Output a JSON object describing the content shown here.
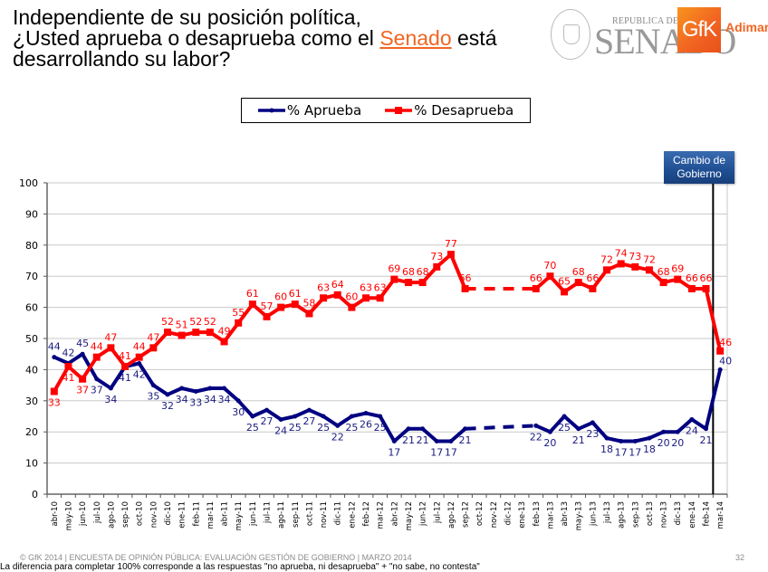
{
  "header": {
    "title_line1": "Independiente de su posición política,",
    "title_line2_pre": "¿Usted aprueba o desaprueba como el ",
    "title_highlight": "Senado",
    "title_line2_post": " está",
    "title_line3": "desarrollando su labor?",
    "highlight_color": "#f26522"
  },
  "logos": {
    "senado_small": "REPUBLICA DE CHILE",
    "senado_big": "SENADO",
    "gfk": "GfK",
    "adimark": "Adimark"
  },
  "annotation": {
    "line1": "Cambio de",
    "line2": "Gobierno",
    "at_category": "feb-14"
  },
  "footer": {
    "copyright": "© GfK 2014 | ENCUESTA DE OPINIÓN PÚBLICA: EVALUACIÓN GESTIÓN DE GOBIERNO | MARZO 2014",
    "note": "La diferencia para completar 100% corresponde a las respuestas \"no aprueba, ni desaprueba\" + \"no sabe, no contesta\"",
    "page": "32"
  },
  "chart_data": {
    "type": "line",
    "title": "¿Usted aprueba o desaprueba como el Senado está desarrollando su labor?",
    "xlabel": "",
    "ylabel": "",
    "ylim": [
      0,
      100
    ],
    "yticks": [
      0,
      10,
      20,
      30,
      40,
      50,
      60,
      70,
      80,
      90,
      100
    ],
    "grid": true,
    "legend_position": "top-center",
    "categories": [
      "abr-10",
      "may-10",
      "jun-10",
      "jul-10",
      "ago-10",
      "sep-10",
      "oct-10",
      "nov-10",
      "dic-10",
      "ene-11",
      "feb-11",
      "mar-11",
      "abr-11",
      "may-11",
      "jun-11",
      "jul-11",
      "ago-11",
      "sep-11",
      "oct-11",
      "nov-11",
      "dic-11",
      "ene-12",
      "feb-12",
      "mar-12",
      "abr-12",
      "may-12",
      "jun-12",
      "jul-12",
      "ago-12",
      "sep-12",
      "oct-12",
      "nov-12",
      "dic-12",
      "ene-13",
      "feb-13",
      "mar-13",
      "abr-13",
      "may-13",
      "jun-13",
      "jul-13",
      "ago-13",
      "sep-13",
      "oct-13",
      "nov-13",
      "dic-13",
      "ene-14",
      "feb-14",
      "mar-14"
    ],
    "series": [
      {
        "name": "% Aprueba",
        "color": "#000080",
        "values": [
          44,
          42,
          45,
          37,
          34,
          41,
          42,
          35,
          32,
          34,
          33,
          34,
          34,
          30,
          25,
          27,
          24,
          25,
          27,
          25,
          22,
          25,
          26,
          25,
          17,
          21,
          21,
          17,
          17,
          21,
          null,
          null,
          null,
          null,
          22,
          20,
          25,
          21,
          23,
          18,
          17,
          17,
          18,
          20,
          20,
          24,
          21,
          40
        ]
      },
      {
        "name": "% Desaprueba",
        "color": "#ff0000",
        "values": [
          33,
          41,
          37,
          44,
          47,
          41,
          44,
          47,
          52,
          51,
          52,
          52,
          49,
          55,
          61,
          57,
          60,
          61,
          58,
          63,
          64,
          60,
          63,
          63,
          69,
          68,
          68,
          73,
          77,
          66,
          null,
          null,
          null,
          null,
          66,
          70,
          65,
          68,
          66,
          72,
          74,
          73,
          72,
          68,
          69,
          66,
          66,
          46
        ]
      }
    ],
    "gap_style": "dashed"
  }
}
